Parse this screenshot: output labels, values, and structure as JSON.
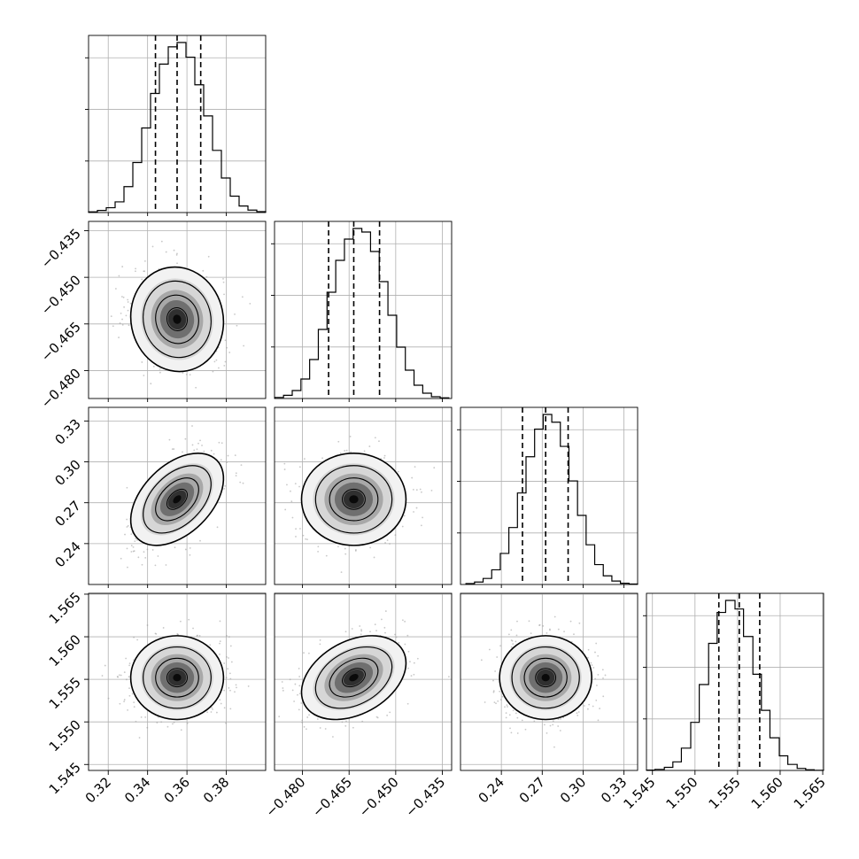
{
  "chart_data": {
    "type": "corner",
    "grid": true,
    "parameters": [
      {
        "index": 0,
        "range": [
          0.31,
          0.4
        ],
        "median": 0.355,
        "quantiles": [
          0.344,
          0.355,
          0.367
        ],
        "sigma": 0.0115,
        "ticks": [
          0.32,
          0.34,
          0.36,
          0.38
        ],
        "tick_labels": [
          "0.32",
          "0.34",
          "0.36",
          "0.38"
        ]
      },
      {
        "index": 1,
        "range": [
          -0.489,
          -0.432
        ],
        "median": -0.4635,
        "quantiles": [
          -0.4716,
          -0.4635,
          -0.4552
        ],
        "sigma": 0.0082,
        "ticks": [
          -0.48,
          -0.465,
          -0.45,
          -0.435
        ],
        "tick_labels": [
          "−0.480",
          "−0.465",
          "−0.450",
          "−0.435"
        ]
      },
      {
        "index": 2,
        "range": [
          0.21,
          0.34
        ],
        "median": 0.2725,
        "quantiles": [
          0.2555,
          0.2725,
          0.289
        ],
        "sigma": 0.0165,
        "ticks": [
          0.24,
          0.27,
          0.3,
          0.33
        ],
        "tick_labels": [
          "0.24",
          "0.27",
          "0.30",
          "0.33"
        ]
      },
      {
        "index": 3,
        "range": [
          1.5443,
          1.5651
        ],
        "median": 1.5552,
        "quantiles": [
          1.5528,
          1.5552,
          1.5576
        ],
        "sigma": 0.0024,
        "ticks": [
          1.545,
          1.55,
          1.555,
          1.56,
          1.565
        ],
        "tick_labels": [
          "1.545",
          "1.550",
          "1.555",
          "1.560",
          "1.565"
        ]
      }
    ],
    "correlations": [
      {
        "x": 0,
        "y": 1,
        "rho": -0.05
      },
      {
        "x": 0,
        "y": 2,
        "rho": 0.45
      },
      {
        "x": 1,
        "y": 2,
        "rho": 0.0
      },
      {
        "x": 0,
        "y": 3,
        "rho": 0.0
      },
      {
        "x": 1,
        "y": 3,
        "rho": 0.35
      },
      {
        "x": 2,
        "y": 3,
        "rho": 0.0
      }
    ],
    "histograms": [
      {
        "bins": [
          0.31,
          0.3145,
          0.319,
          0.3235,
          0.328,
          0.3325,
          0.337,
          0.3415,
          0.346,
          0.3505,
          0.355,
          0.3595,
          0.364,
          0.3685,
          0.373,
          0.3775,
          0.382,
          0.3865,
          0.391,
          0.3955,
          0.4
        ],
        "counts": [
          4,
          12,
          28,
          62,
          150,
          290,
          490,
          690,
          860,
          960,
          985,
          900,
          740,
          560,
          360,
          200,
          95,
          38,
          14,
          5
        ]
      },
      {
        "bins": [
          -0.4889,
          -0.4861,
          -0.4833,
          -0.4805,
          -0.4777,
          -0.4749,
          -0.4721,
          -0.4693,
          -0.4665,
          -0.4637,
          -0.4609,
          -0.4581,
          -0.4553,
          -0.4525,
          -0.4497,
          -0.4469,
          -0.4441,
          -0.4413,
          -0.4385,
          -0.4357,
          -0.4329
        ],
        "counts": [
          6,
          18,
          45,
          110,
          220,
          390,
          600,
          780,
          900,
          960,
          940,
          830,
          660,
          470,
          290,
          160,
          75,
          30,
          10,
          4
        ]
      },
      {
        "bins": [
          0.214,
          0.2203,
          0.2266,
          0.2329,
          0.2392,
          0.2455,
          0.2518,
          0.2581,
          0.2644,
          0.2707,
          0.277,
          0.2833,
          0.2896,
          0.2959,
          0.3022,
          0.3085,
          0.3148,
          0.3211,
          0.3274,
          0.3337,
          0.34
        ],
        "counts": [
          5,
          14,
          35,
          85,
          180,
          330,
          530,
          740,
          900,
          985,
          940,
          800,
          600,
          400,
          230,
          115,
          50,
          20,
          7,
          3
        ]
      },
      {
        "bins": [
          1.5443,
          1.5453,
          1.5464,
          1.5474,
          1.5484,
          1.5495,
          1.5505,
          1.5516,
          1.5526,
          1.5536,
          1.5547,
          1.5557,
          1.5568,
          1.5578,
          1.5588,
          1.5599,
          1.5609,
          1.562,
          1.563,
          1.564,
          1.5651
        ],
        "counts": [
          2,
          6,
          18,
          50,
          130,
          280,
          500,
          740,
          920,
          990,
          940,
          780,
          560,
          350,
          190,
          85,
          35,
          12,
          4,
          1
        ]
      }
    ]
  }
}
